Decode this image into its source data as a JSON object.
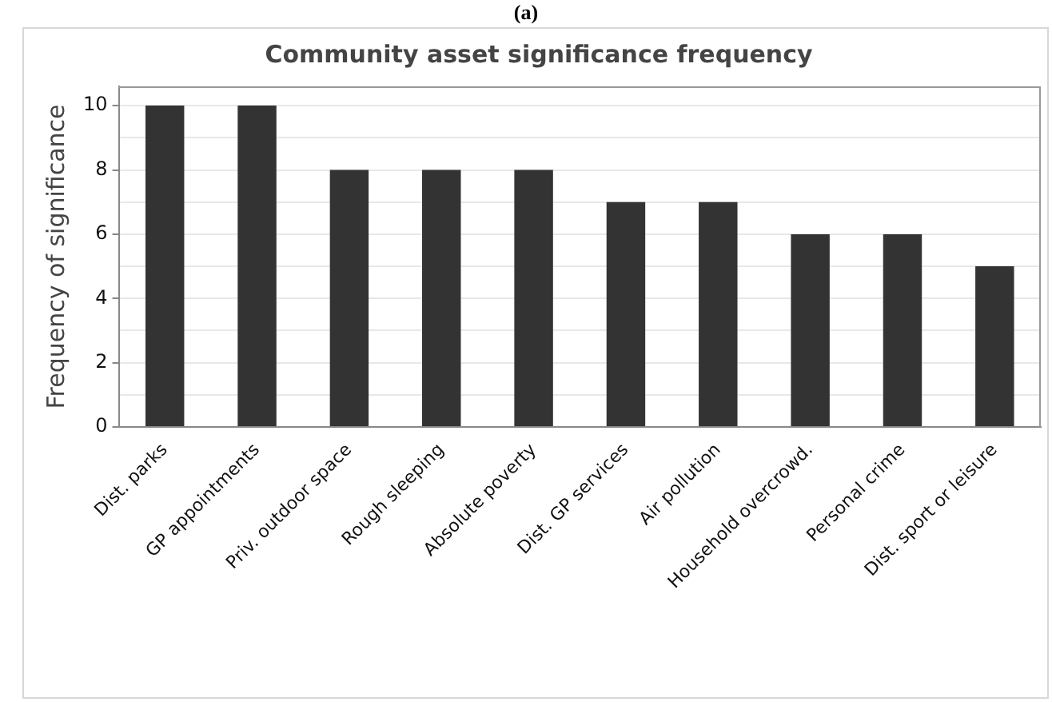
{
  "chart_data": {
    "type": "bar",
    "title": "Community asset significance frequency",
    "ylabel": "Frequency of significance",
    "annotations": [
      "(a)"
    ],
    "categories": [
      "Dist. parks",
      "GP appointments",
      "Priv. outdoor space",
      "Rough sleeping",
      "Absolute poverty",
      "Dist. GP services",
      "Air pollution",
      "Household overcrowd.",
      "Personal crime",
      "Dist. sport or leisure"
    ],
    "values": [
      10,
      10,
      8,
      8,
      8,
      7,
      7,
      6,
      6,
      5
    ],
    "color": "#333333",
    "ylim": [
      0,
      10.6
    ],
    "yticks": [
      0,
      {
        "value": 1,
        "label": null
      },
      2,
      {
        "value": 3,
        "label": null
      },
      4,
      {
        "value": 5,
        "label": null
      },
      6,
      {
        "value": 7,
        "label": null
      },
      8,
      {
        "value": 9,
        "label": null
      },
      10
    ],
    "grid": "y",
    "legend": false
  }
}
